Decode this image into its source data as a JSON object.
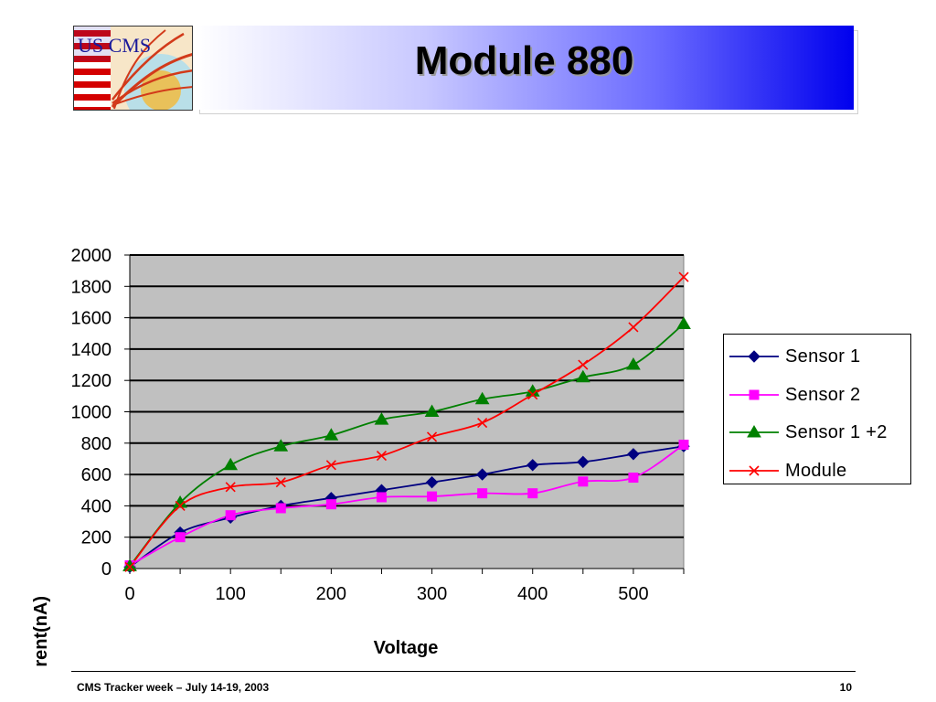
{
  "slide": {
    "title": "Module 880",
    "logo_text": "US CMS",
    "footer_left": "CMS Tracker week – July 14-19, 2003",
    "footer_right": "10"
  },
  "chart_data": {
    "type": "line",
    "title": "",
    "xlabel": "Voltage",
    "ylabel": "Current(nA)",
    "xlim": [
      0,
      550
    ],
    "ylim": [
      0,
      2000
    ],
    "xticks": [
      0,
      100,
      200,
      300,
      400,
      500
    ],
    "yticks": [
      0,
      200,
      400,
      600,
      800,
      1000,
      1200,
      1400,
      1600,
      1800,
      2000
    ],
    "grid": "horizontal",
    "plot_background": "#c0c0c0",
    "legend_position": "right",
    "x": [
      0,
      50,
      100,
      150,
      200,
      250,
      300,
      350,
      400,
      450,
      500,
      550
    ],
    "series": [
      {
        "name": "Sensor 1",
        "color": "#000080",
        "marker": "diamond",
        "values": [
          10,
          230,
          325,
          400,
          450,
          500,
          550,
          600,
          660,
          680,
          730,
          780
        ]
      },
      {
        "name": "Sensor 2",
        "color": "#ff00ff",
        "marker": "square",
        "values": [
          20,
          200,
          340,
          385,
          410,
          455,
          460,
          480,
          480,
          555,
          580,
          790
        ]
      },
      {
        "name": "Sensor 1 +2",
        "color": "#008000",
        "marker": "triangle",
        "values": [
          15,
          420,
          660,
          780,
          850,
          950,
          1000,
          1080,
          1130,
          1220,
          1300,
          1560
        ]
      },
      {
        "name": "Module",
        "color": "#ff0000",
        "marker": "x",
        "values": [
          10,
          400,
          520,
          550,
          660,
          720,
          840,
          930,
          1110,
          1300,
          1540,
          1860
        ]
      }
    ]
  }
}
